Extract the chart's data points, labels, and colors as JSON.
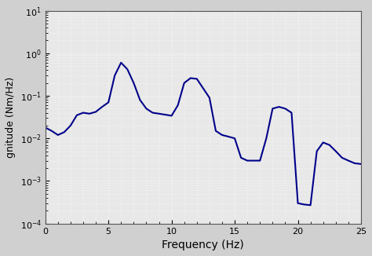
{
  "title": "",
  "xlabel": "Frequency (Hz)",
  "ylabel": "gnitude (Nm/Hz)",
  "xlim": [
    0,
    25
  ],
  "ylim_log": [
    0.0001,
    10.0
  ],
  "yticks": [
    0.0001,
    0.001,
    0.01,
    0.1,
    1.0,
    10.0
  ],
  "xticks": [
    0,
    5,
    10,
    15,
    20,
    25
  ],
  "line_color": "#00008B",
  "bg_color": "#e8e8e8",
  "grid_color": "#ffffff",
  "freq_points": [
    0.0,
    0.5,
    1.0,
    1.5,
    2.0,
    2.5,
    3.0,
    3.5,
    4.0,
    4.5,
    5.0,
    5.5,
    6.0,
    6.5,
    7.0,
    7.5,
    8.0,
    8.5,
    9.0,
    9.5,
    10.0,
    10.5,
    11.0,
    11.5,
    12.0,
    12.5,
    13.0,
    13.5,
    14.0,
    14.5,
    15.0,
    15.5,
    16.0,
    16.5,
    17.0,
    17.5,
    18.0,
    18.5,
    19.0,
    19.5,
    20.0,
    20.5,
    21.0,
    21.5,
    22.0,
    22.5,
    23.0,
    23.5,
    24.0,
    24.5,
    25.0
  ],
  "psd_points": [
    0.018,
    0.015,
    0.012,
    0.014,
    0.02,
    0.035,
    0.04,
    0.038,
    0.042,
    0.055,
    0.07,
    0.3,
    0.6,
    0.42,
    0.2,
    0.08,
    0.05,
    0.04,
    0.038,
    0.036,
    0.034,
    0.06,
    0.2,
    0.26,
    0.25,
    0.15,
    0.09,
    0.015,
    0.012,
    0.011,
    0.01,
    0.0035,
    0.003,
    0.003,
    0.003,
    0.01,
    0.05,
    0.055,
    0.05,
    0.04,
    0.0003,
    0.00028,
    0.00027,
    0.005,
    0.008,
    0.007,
    0.005,
    0.0035,
    0.003,
    0.0026,
    0.0025
  ]
}
